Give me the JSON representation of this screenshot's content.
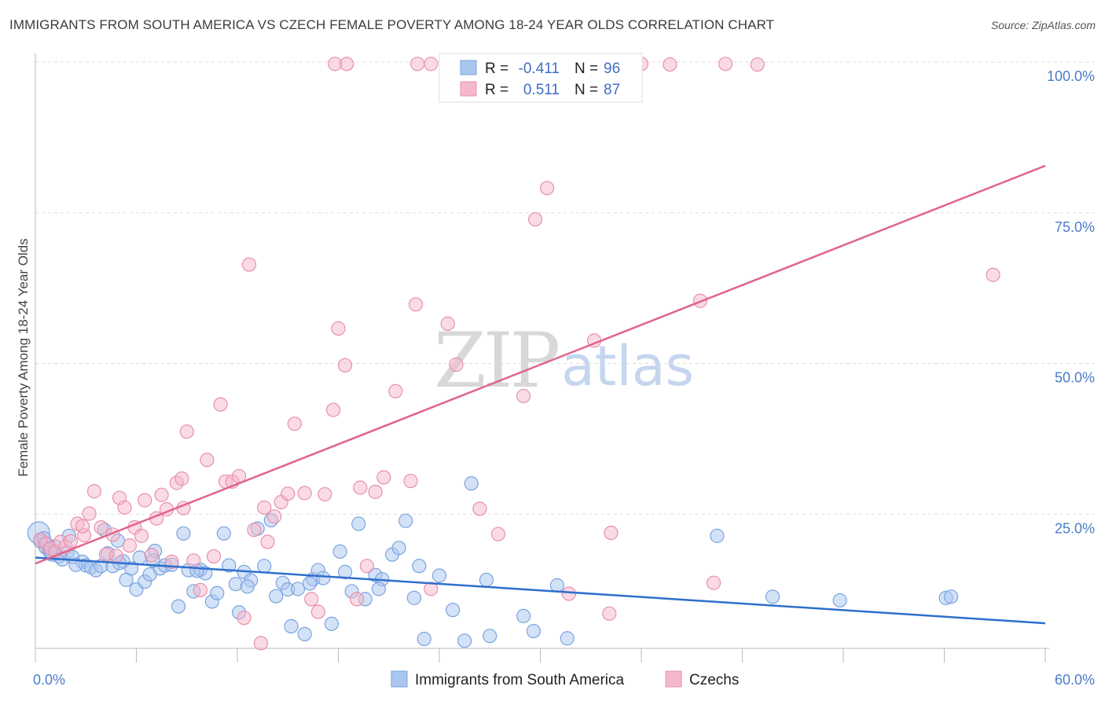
{
  "title": "IMMIGRANTS FROM SOUTH AMERICA VS CZECH FEMALE POVERTY AMONG 18-24 YEAR OLDS CORRELATION CHART",
  "source": "Source: ZipAtlas.com",
  "watermark": {
    "zip": "ZIP",
    "atlas": "atlas"
  },
  "legend": {
    "rows": [
      {
        "r_label": "R =",
        "r_value": "-0.411",
        "n_label": "N =",
        "n_value": "96",
        "color": "#a9c6f0"
      },
      {
        "r_label": "R =",
        "r_value": "0.511",
        "n_label": "N =",
        "n_value": "87",
        "color": "#f5b8cb"
      }
    ]
  },
  "bottom_legend": [
    {
      "label": "Immigrants from South America",
      "color": "#a9c6f0"
    },
    {
      "label": "Czechs",
      "color": "#f5b8cb"
    }
  ],
  "chart_data": {
    "type": "scatter",
    "title": "IMMIGRANTS FROM SOUTH AMERICA VS CZECH FEMALE POVERTY AMONG 18-24 YEAR OLDS CORRELATION CHART",
    "xlabel": "",
    "ylabel": "Female Poverty Among 18-24 Year Olds",
    "xlim": [
      0,
      60
    ],
    "ylim": [
      0,
      100
    ],
    "x_tick_labels": [
      "0.0%",
      "60.0%"
    ],
    "y_ticks": [
      25,
      50,
      75,
      100
    ],
    "y_tick_labels": [
      "25.0%",
      "50.0%",
      "75.0%",
      "100.0%"
    ],
    "grid": true,
    "legend_position": "top-center",
    "series": [
      {
        "name": "Immigrants from South America",
        "color": "#a9c6f0",
        "line_color": "#2f6fcc",
        "trend": {
          "x": [
            0,
            60
          ],
          "y": [
            17.8,
            6.9
          ]
        },
        "points": [
          [
            0.2,
            21.9
          ],
          [
            0.3,
            20.5
          ],
          [
            0.5,
            21.0
          ],
          [
            0.6,
            19.5
          ],
          [
            0.7,
            20.0
          ],
          [
            0.8,
            19.0
          ],
          [
            1.0,
            18.3
          ],
          [
            1.2,
            19.6
          ],
          [
            1.4,
            18.0
          ],
          [
            1.6,
            17.5
          ],
          [
            1.9,
            18.7
          ],
          [
            2.0,
            21.4
          ],
          [
            2.2,
            17.9
          ],
          [
            2.8,
            17.1
          ],
          [
            3.0,
            16.5
          ],
          [
            3.3,
            16.2
          ],
          [
            3.6,
            15.7
          ],
          [
            3.9,
            16.4
          ],
          [
            4.1,
            22.4
          ],
          [
            4.3,
            18.5
          ],
          [
            4.6,
            16.4
          ],
          [
            4.9,
            20.6
          ],
          [
            5.2,
            17.2
          ],
          [
            5.4,
            14.1
          ],
          [
            5.7,
            16.0
          ],
          [
            6.0,
            12.5
          ],
          [
            6.2,
            17.8
          ],
          [
            6.5,
            13.8
          ],
          [
            6.8,
            15.0
          ],
          [
            7.1,
            18.9
          ],
          [
            7.4,
            16.0
          ],
          [
            7.7,
            16.5
          ],
          [
            8.1,
            16.6
          ],
          [
            8.5,
            9.7
          ],
          [
            8.8,
            21.8
          ],
          [
            9.1,
            15.7
          ],
          [
            9.4,
            12.2
          ],
          [
            9.8,
            15.8
          ],
          [
            10.1,
            15.2
          ],
          [
            10.5,
            10.5
          ],
          [
            10.8,
            11.9
          ],
          [
            11.2,
            21.8
          ],
          [
            11.5,
            16.5
          ],
          [
            11.9,
            13.4
          ],
          [
            12.1,
            8.7
          ],
          [
            12.4,
            15.4
          ],
          [
            12.8,
            14.0
          ],
          [
            13.2,
            22.6
          ],
          [
            13.6,
            16.4
          ],
          [
            14.0,
            24.0
          ],
          [
            14.3,
            11.4
          ],
          [
            14.7,
            13.6
          ],
          [
            15.0,
            12.5
          ],
          [
            15.2,
            6.4
          ],
          [
            15.6,
            12.6
          ],
          [
            16.0,
            5.1
          ],
          [
            16.5,
            14.2
          ],
          [
            16.8,
            15.7
          ],
          [
            17.1,
            14.4
          ],
          [
            17.6,
            6.8
          ],
          [
            18.1,
            18.8
          ],
          [
            18.4,
            15.4
          ],
          [
            18.8,
            12.2
          ],
          [
            19.2,
            23.4
          ],
          [
            19.6,
            10.9
          ],
          [
            20.2,
            14.9
          ],
          [
            20.6,
            14.2
          ],
          [
            21.2,
            18.3
          ],
          [
            21.6,
            19.4
          ],
          [
            22.0,
            23.9
          ],
          [
            22.5,
            11.1
          ],
          [
            23.1,
            4.3
          ],
          [
            24.0,
            14.8
          ],
          [
            24.8,
            9.1
          ],
          [
            25.5,
            4.0
          ],
          [
            25.9,
            30.1
          ],
          [
            26.8,
            14.1
          ],
          [
            27.0,
            4.8
          ],
          [
            29.0,
            8.1
          ],
          [
            29.6,
            5.6
          ],
          [
            31.0,
            13.2
          ],
          [
            31.6,
            4.4
          ],
          [
            40.5,
            21.4
          ],
          [
            43.8,
            11.3
          ],
          [
            47.8,
            10.7
          ],
          [
            54.1,
            11.1
          ],
          [
            54.4,
            11.3
          ],
          [
            0.9,
            18.6
          ],
          [
            2.4,
            16.6
          ],
          [
            5.0,
            16.9
          ],
          [
            7.0,
            17.3
          ],
          [
            9.6,
            15.6
          ],
          [
            12.6,
            13.0
          ],
          [
            16.3,
            13.5
          ],
          [
            20.4,
            12.6
          ],
          [
            22.8,
            16.4
          ]
        ]
      },
      {
        "name": "Czechs",
        "color": "#f5b8cb",
        "line_color": "#e0638d",
        "trend": {
          "x": [
            0,
            60
          ],
          "y": [
            16.8,
            82.8
          ]
        },
        "points": [
          [
            0.3,
            20.8
          ],
          [
            0.6,
            20.1
          ],
          [
            0.9,
            19.3
          ],
          [
            1.2,
            18.8
          ],
          [
            1.5,
            20.4
          ],
          [
            1.8,
            19.6
          ],
          [
            2.1,
            20.5
          ],
          [
            2.5,
            23.4
          ],
          [
            2.9,
            21.5
          ],
          [
            3.2,
            25.1
          ],
          [
            3.5,
            28.8
          ],
          [
            3.9,
            22.8
          ],
          [
            4.2,
            18.3
          ],
          [
            4.6,
            21.6
          ],
          [
            5.0,
            27.7
          ],
          [
            5.3,
            26.1
          ],
          [
            5.6,
            19.8
          ],
          [
            5.9,
            22.8
          ],
          [
            6.3,
            21.4
          ],
          [
            6.5,
            27.3
          ],
          [
            6.9,
            18.2
          ],
          [
            7.2,
            24.3
          ],
          [
            7.5,
            28.2
          ],
          [
            7.8,
            25.8
          ],
          [
            8.1,
            17.1
          ],
          [
            8.4,
            30.2
          ],
          [
            8.7,
            30.9
          ],
          [
            9.0,
            38.7
          ],
          [
            9.4,
            17.3
          ],
          [
            9.8,
            12.4
          ],
          [
            10.2,
            34.0
          ],
          [
            10.6,
            18.0
          ],
          [
            11.0,
            43.2
          ],
          [
            11.3,
            30.4
          ],
          [
            11.7,
            30.4
          ],
          [
            12.1,
            31.3
          ],
          [
            12.4,
            7.8
          ],
          [
            12.7,
            66.4
          ],
          [
            13.0,
            22.4
          ],
          [
            13.4,
            3.6
          ],
          [
            13.8,
            20.4
          ],
          [
            14.2,
            24.6
          ],
          [
            14.6,
            27.0
          ],
          [
            15.0,
            28.4
          ],
          [
            15.4,
            40.0
          ],
          [
            16.0,
            28.5
          ],
          [
            16.4,
            10.9
          ],
          [
            16.8,
            8.8
          ],
          [
            17.2,
            28.3
          ],
          [
            17.7,
            42.3
          ],
          [
            18.0,
            55.8
          ],
          [
            18.4,
            49.7
          ],
          [
            19.1,
            10.9
          ],
          [
            19.7,
            16.4
          ],
          [
            20.2,
            28.7
          ],
          [
            20.7,
            31.1
          ],
          [
            21.4,
            45.4
          ],
          [
            22.3,
            30.5
          ],
          [
            23.5,
            12.6
          ],
          [
            24.5,
            56.6
          ],
          [
            25.0,
            49.8
          ],
          [
            26.4,
            25.9
          ],
          [
            27.5,
            21.7
          ],
          [
            29.0,
            44.6
          ],
          [
            29.7,
            73.9
          ],
          [
            30.4,
            79.1
          ],
          [
            31.7,
            11.8
          ],
          [
            33.2,
            53.8
          ],
          [
            34.1,
            8.5
          ],
          [
            34.2,
            21.9
          ],
          [
            36.0,
            99.7
          ],
          [
            37.7,
            99.6
          ],
          [
            39.5,
            60.4
          ],
          [
            40.3,
            13.6
          ],
          [
            56.9,
            64.7
          ],
          [
            17.8,
            99.7
          ],
          [
            18.5,
            99.7
          ],
          [
            22.7,
            99.7
          ],
          [
            23.5,
            99.7
          ],
          [
            41.0,
            99.7
          ],
          [
            42.9,
            99.6
          ],
          [
            22.6,
            59.8
          ],
          [
            2.8,
            23.0
          ],
          [
            4.8,
            18.1
          ],
          [
            8.8,
            26.0
          ],
          [
            13.6,
            26.1
          ],
          [
            19.3,
            29.4
          ]
        ]
      }
    ]
  }
}
